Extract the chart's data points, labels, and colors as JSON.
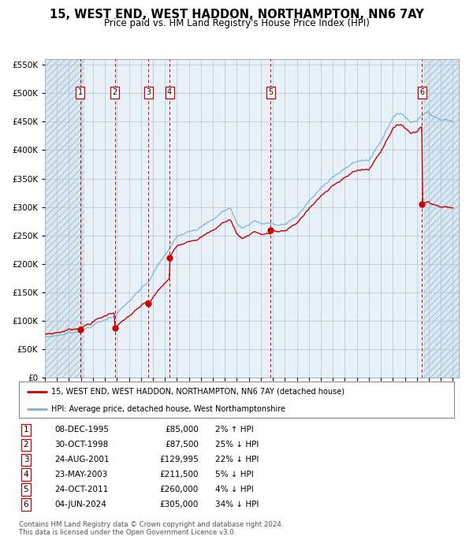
{
  "title": "15, WEST END, WEST HADDON, NORTHAMPTON, NN6 7AY",
  "subtitle": "Price paid vs. HM Land Registry's House Price Index (HPI)",
  "legend_line1": "15, WEST END, WEST HADDON, NORTHAMPTON, NN6 7AY (detached house)",
  "legend_line2": "HPI: Average price, detached house, West Northamptonshire",
  "footer1": "Contains HM Land Registry data © Crown copyright and database right 2024.",
  "footer2": "This data is licensed under the Open Government Licence v3.0.",
  "sale_dates_num": [
    1995.93,
    1998.83,
    2001.64,
    2003.39,
    2011.81,
    2024.42
  ],
  "sale_prices": [
    85000,
    87500,
    129995,
    211500,
    260000,
    305000
  ],
  "sale_labels": [
    "1",
    "2",
    "3",
    "4",
    "5",
    "6"
  ],
  "sale_table": [
    [
      "1",
      "08-DEC-1995",
      "£85,000",
      "2% ↑ HPI"
    ],
    [
      "2",
      "30-OCT-1998",
      "£87,500",
      "25% ↓ HPI"
    ],
    [
      "3",
      "24-AUG-2001",
      "£129,995",
      "22% ↓ HPI"
    ],
    [
      "4",
      "23-MAY-2003",
      "£211,500",
      "5% ↓ HPI"
    ],
    [
      "5",
      "24-OCT-2011",
      "£260,000",
      "4% ↓ HPI"
    ],
    [
      "6",
      "04-JUN-2024",
      "£305,000",
      "34% ↓ HPI"
    ]
  ],
  "hpi_color": "#7bafd4",
  "sale_color": "#cc0000",
  "plot_bg": "#e8f0f8",
  "grid_color": "#b0c4d8",
  "ylim": [
    0,
    560000
  ],
  "xlim_start": 1993.0,
  "xlim_end": 2027.5,
  "hatch_end": 1996.3,
  "hatch_start2": 2024.55,
  "title_fontsize": 10.5,
  "subtitle_fontsize": 8.5
}
